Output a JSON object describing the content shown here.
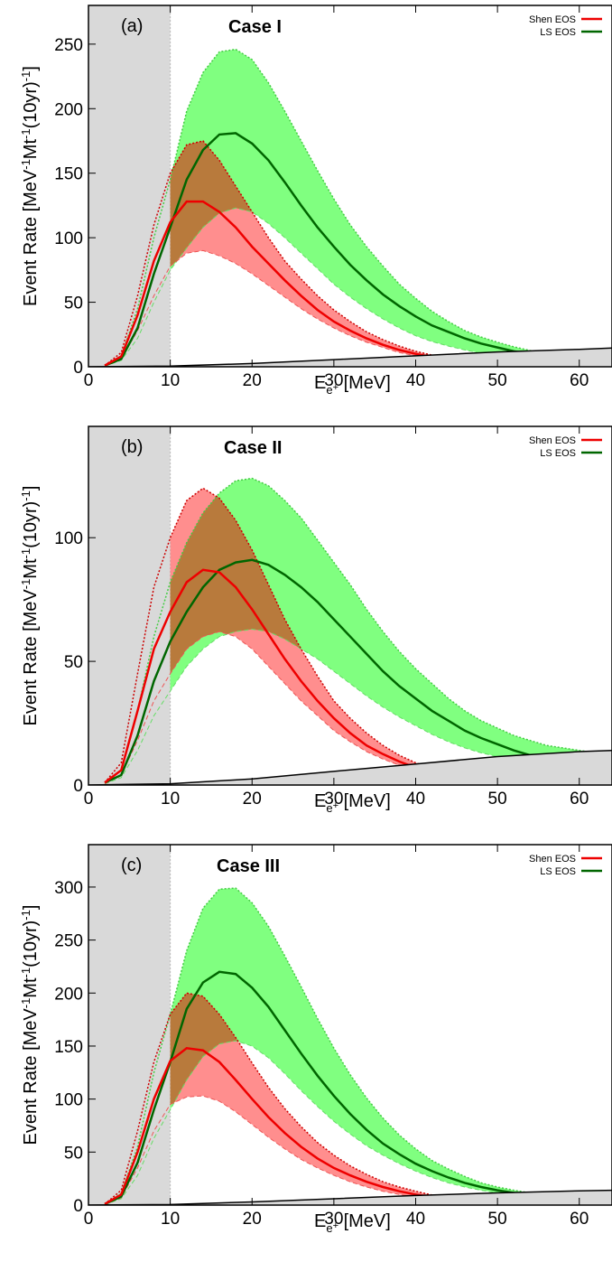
{
  "figure": {
    "panels": [
      {
        "panel_label": "(a)",
        "case_title": "Case I"
      },
      {
        "panel_label": "(b)",
        "case_title": "Case II"
      },
      {
        "panel_label": "(c)",
        "case_title": "Case III"
      }
    ]
  },
  "chart_data": [
    {
      "type": "line",
      "title": "Case I",
      "panel_label": "(a)",
      "xlabel": "E_e+ [MeV]",
      "ylabel": "Event Rate [MeV^-1 Mt^-1 (10yr)^-1]",
      "xlim": [
        0,
        64
      ],
      "ylim": [
        0,
        280
      ],
      "xticks": [
        0,
        10,
        20,
        30,
        40,
        50,
        60
      ],
      "yticks": [
        0,
        50,
        100,
        150,
        200,
        250
      ],
      "legend": {
        "placement": "top-right",
        "entries": [
          "Shen EOS",
          "LS EOS"
        ]
      },
      "shaded_region": {
        "x_from": 0,
        "x_to": 10,
        "color": "#d9d9d9"
      },
      "colors": {
        "Shen EOS": "#ee0000",
        "LS EOS": "#006600",
        "band_red": "#ff7a7a",
        "band_green": "#80ff80",
        "band_overlap": "#b87a3c",
        "background": "#d9d9d9"
      },
      "x": [
        2,
        4,
        6,
        8,
        10,
        12,
        14,
        16,
        18,
        20,
        22,
        24,
        26,
        28,
        30,
        32,
        34,
        36,
        38,
        40,
        42,
        44,
        46,
        48,
        50,
        52,
        54,
        56,
        58,
        60,
        62,
        64
      ],
      "series": [
        {
          "name": "Shen EOS",
          "central": [
            1,
            8,
            40,
            82,
            112,
            128,
            128,
            120,
            108,
            93,
            80,
            67,
            55,
            44,
            35,
            28,
            22,
            17,
            13,
            10,
            7.5,
            5.5,
            4,
            3,
            2.2,
            1.6,
            1.2,
            0.9,
            0.7,
            0.5,
            0.4,
            0.3
          ],
          "upper": [
            1,
            11,
            55,
            110,
            150,
            172,
            175,
            160,
            140,
            120,
            100,
            82,
            68,
            55,
            44,
            35,
            27,
            21,
            16,
            12,
            9,
            7,
            5,
            4,
            3,
            2.2,
            1.6,
            1.2,
            0.9,
            0.7,
            0.5,
            0.4
          ],
          "lower": [
            0.5,
            6,
            28,
            55,
            78,
            88,
            90,
            86,
            80,
            72,
            63,
            54,
            45,
            37,
            30,
            24,
            19,
            15,
            11,
            8.5,
            6.2,
            4.6,
            3.4,
            2.5,
            1.8,
            1.3,
            1,
            0.7,
            0.5,
            0.4,
            0.3,
            0.2
          ]
        },
        {
          "name": "LS EOS",
          "central": [
            1,
            6,
            30,
            72,
            108,
            145,
            168,
            180,
            181,
            173,
            160,
            143,
            125,
            108,
            93,
            79,
            67,
            56,
            47,
            39,
            32,
            27,
            22,
            18,
            15,
            12,
            10,
            8.5,
            7,
            6,
            5,
            4
          ],
          "upper": [
            1,
            8,
            45,
            100,
            145,
            198,
            228,
            244,
            246,
            238,
            220,
            198,
            175,
            152,
            130,
            110,
            93,
            78,
            64,
            53,
            43,
            35,
            28,
            23,
            19,
            15.5,
            12.5,
            10.5,
            9,
            7.5,
            6.5,
            5.5
          ],
          "lower": [
            0.5,
            5,
            22,
            50,
            75,
            92,
            108,
            119,
            123,
            120,
            111,
            100,
            88,
            76,
            64,
            54,
            45,
            37,
            30,
            24,
            19.5,
            16,
            13,
            10.5,
            9,
            7.5,
            6.2,
            5.3,
            4.6,
            4,
            3.5,
            3
          ]
        }
      ],
      "background": {
        "x": [
          0,
          10,
          20,
          30,
          40,
          50,
          60,
          64
        ],
        "values": [
          0,
          0.5,
          2.5,
          5.5,
          8.5,
          11.5,
          13.5,
          14.5
        ]
      }
    },
    {
      "type": "line",
      "title": "Case II",
      "panel_label": "(b)",
      "xlabel": "E_e+ [MeV]",
      "ylabel": "Event Rate [MeV^-1 Mt^-1 (10yr)^-1]",
      "xlim": [
        0,
        64
      ],
      "ylim": [
        0,
        145
      ],
      "xticks": [
        0,
        10,
        20,
        30,
        40,
        50,
        60
      ],
      "yticks": [
        0,
        50,
        100
      ],
      "legend": {
        "placement": "top-right",
        "entries": [
          "Shen EOS",
          "LS EOS"
        ]
      },
      "shaded_region": {
        "x_from": 0,
        "x_to": 10,
        "color": "#d9d9d9"
      },
      "colors": {
        "Shen EOS": "#ee0000",
        "LS EOS": "#006600",
        "band_red": "#ff7a7a",
        "band_green": "#80ff80",
        "band_overlap": "#b87a3c",
        "background": "#d9d9d9"
      },
      "x": [
        2,
        4,
        6,
        8,
        10,
        12,
        14,
        16,
        18,
        20,
        22,
        24,
        26,
        28,
        30,
        32,
        34,
        36,
        38,
        40,
        42,
        44,
        46,
        48,
        50,
        52,
        54,
        56,
        58,
        60,
        62,
        64
      ],
      "series": [
        {
          "name": "Shen EOS",
          "central": [
            1,
            6,
            30,
            55,
            70,
            82,
            87,
            86,
            80,
            71,
            61,
            51,
            42,
            34,
            27,
            21,
            16,
            12.5,
            9.5,
            7,
            5,
            3.8,
            2.8,
            2,
            1.5,
            1.1,
            0.8,
            0.6,
            0.45,
            0.35,
            0.25,
            0.2
          ],
          "upper": [
            1,
            9,
            45,
            80,
            100,
            115,
            120,
            116,
            107,
            95,
            81,
            67,
            55,
            44,
            34,
            27,
            21,
            16,
            12,
            9,
            6.7,
            5,
            3.7,
            2.7,
            2,
            1.5,
            1.1,
            0.8,
            0.6,
            0.45,
            0.35,
            0.25
          ],
          "lower": [
            0.5,
            4,
            18,
            34,
            45,
            55,
            60,
            62,
            60,
            55,
            48,
            41,
            34,
            28,
            22,
            17.5,
            13.5,
            10.5,
            8,
            6,
            4.5,
            3.3,
            2.4,
            1.8,
            1.3,
            1,
            0.7,
            0.55,
            0.4,
            0.3,
            0.2,
            0.15
          ]
        },
        {
          "name": "LS EOS",
          "central": [
            1,
            4,
            20,
            42,
            58,
            70,
            80,
            87,
            90,
            91,
            89,
            85,
            80,
            74,
            67,
            60,
            53,
            46,
            40,
            35,
            30,
            26,
            22,
            19,
            16.5,
            14,
            12,
            10.5,
            9,
            8,
            7,
            6
          ],
          "upper": [
            1,
            6,
            30,
            60,
            82,
            98,
            110,
            118,
            123,
            124,
            121,
            115,
            108,
            99,
            90,
            81,
            71,
            62,
            54,
            47,
            41,
            35,
            30,
            26,
            23,
            20,
            18,
            16,
            15,
            14,
            13,
            12
          ],
          "lower": [
            0.5,
            3,
            14,
            28,
            38,
            48,
            55,
            60,
            62,
            63,
            62,
            59,
            55,
            51,
            46,
            41,
            36,
            31.5,
            27.5,
            24,
            20.5,
            17.5,
            15,
            13,
            11.5,
            10,
            9,
            8,
            7.5,
            7,
            6.5,
            6
          ]
        }
      ],
      "background": {
        "x": [
          0,
          10,
          20,
          30,
          40,
          50,
          60,
          64
        ],
        "values": [
          0,
          0.5,
          2.5,
          5.5,
          8.5,
          11.5,
          13.5,
          14
        ]
      }
    },
    {
      "type": "line",
      "title": "Case III",
      "panel_label": "(c)",
      "xlabel": "E_e+ [MeV]",
      "ylabel": "Event Rate [MeV^-1 Mt^-1 (10yr)^-1]",
      "xlim": [
        0,
        64
      ],
      "ylim": [
        0,
        340
      ],
      "xticks": [
        0,
        10,
        20,
        30,
        40,
        50,
        60
      ],
      "yticks": [
        0,
        50,
        100,
        150,
        200,
        250,
        300
      ],
      "legend": {
        "placement": "top-right",
        "entries": [
          "Shen EOS",
          "LS EOS"
        ]
      },
      "shaded_region": {
        "x_from": 0,
        "x_to": 10,
        "color": "#d9d9d9"
      },
      "colors": {
        "Shen EOS": "#ee0000",
        "LS EOS": "#006600",
        "band_red": "#ff7a7a",
        "band_green": "#80ff80",
        "band_overlap": "#b87a3c",
        "background": "#d9d9d9"
      },
      "x": [
        2,
        4,
        6,
        8,
        10,
        12,
        14,
        16,
        18,
        20,
        22,
        24,
        26,
        28,
        30,
        32,
        34,
        36,
        38,
        40,
        42,
        44,
        46,
        48,
        50,
        52,
        54,
        56,
        58,
        60,
        62,
        64
      ],
      "series": [
        {
          "name": "Shen EOS",
          "central": [
            1,
            10,
            50,
            100,
            136,
            148,
            146,
            135,
            118,
            100,
            83,
            68,
            55,
            44,
            35,
            28,
            22,
            17,
            13,
            10,
            7.5,
            5.5,
            4,
            3,
            2.2,
            1.6,
            1.2,
            0.9,
            0.7,
            0.5,
            0.4,
            0.3
          ],
          "upper": [
            1,
            14,
            70,
            135,
            180,
            200,
            197,
            180,
            158,
            134,
            111,
            91,
            74,
            59,
            47,
            37,
            29,
            22,
            17,
            13,
            9.5,
            7,
            5,
            3.7,
            2.7,
            2,
            1.5,
            1.1,
            0.8,
            0.6,
            0.45,
            0.35
          ],
          "lower": [
            0.5,
            7,
            35,
            70,
            95,
            102,
            103,
            98,
            88,
            76,
            64,
            53,
            43,
            35,
            28,
            22,
            17,
            13,
            10,
            7.5,
            5.6,
            4.1,
            3,
            2.2,
            1.6,
            1.2,
            0.9,
            0.65,
            0.5,
            0.35,
            0.25,
            0.2
          ]
        },
        {
          "name": "LS EOS",
          "central": [
            1,
            8,
            40,
            90,
            135,
            185,
            210,
            220,
            218,
            205,
            187,
            165,
            143,
            122,
            103,
            86,
            71,
            58,
            48,
            39,
            32,
            26,
            21,
            17,
            14,
            11.5,
            9.5,
            8,
            7,
            6,
            5.5,
            5
          ],
          "upper": [
            1,
            11,
            55,
            125,
            180,
            240,
            280,
            298,
            299,
            285,
            263,
            235,
            206,
            176,
            148,
            123,
            101,
            82,
            66,
            53,
            42,
            34,
            27,
            21,
            17,
            14,
            11.5,
            9.5,
            8,
            7,
            6,
            5.5
          ],
          "lower": [
            0.5,
            6,
            28,
            63,
            90,
            118,
            140,
            152,
            155,
            150,
            139,
            124,
            108,
            93,
            79,
            67,
            56,
            47,
            39,
            32,
            26,
            21,
            17,
            14,
            11.5,
            9.5,
            8,
            6.8,
            5.8,
            5,
            4.5,
            4
          ]
        }
      ],
      "background": {
        "x": [
          0,
          10,
          20,
          30,
          40,
          50,
          60,
          64
        ],
        "values": [
          0,
          0.5,
          3,
          6,
          9,
          11.5,
          13.5,
          14
        ]
      }
    }
  ],
  "texts": {
    "ylabel_main": "Event Rate [MeV",
    "ylabel_e1": "-1",
    "ylabel_mt": "Mt",
    "ylabel_e2": "-1",
    "ylabel_10yr": "(10yr)",
    "ylabel_e3": "-1",
    "ylabel_close": "]",
    "xlabel_E": "E",
    "xlabel_sub": "e",
    "xlabel_sup": "+",
    "xlabel_unit": " [MeV]",
    "legend_shen": "Shen EOS",
    "legend_ls": "LS EOS"
  }
}
